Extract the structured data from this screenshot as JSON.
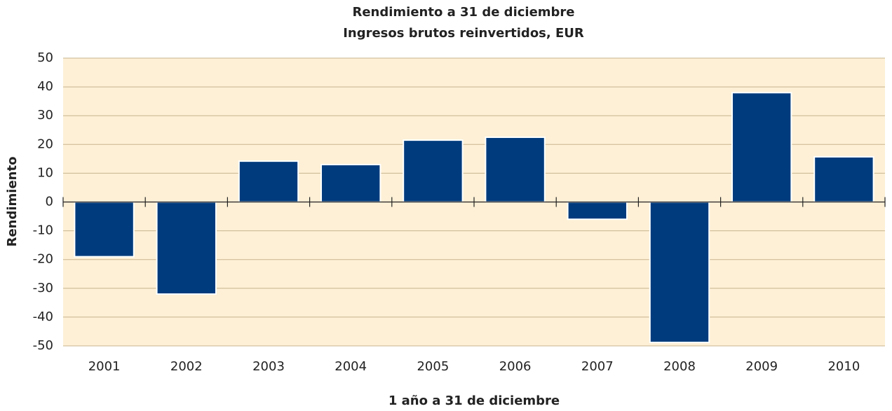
{
  "chart_data": {
    "type": "bar",
    "title": "Rendimiento a 31 de diciembre",
    "subtitle": "Ingresos brutos reinvertidos, EUR",
    "y_label": "Rendimiento",
    "x_label": "1 año a 31 de diciembre",
    "categories": [
      "2001",
      "2002",
      "2003",
      "2004",
      "2005",
      "2006",
      "2007",
      "2008",
      "2009",
      "2010"
    ],
    "values": [
      -19,
      -32,
      14.2,
      13,
      21.5,
      22.5,
      -6,
      -48.8,
      38,
      15.7
    ],
    "color": "#003b7d",
    "ylim": [
      -50,
      50
    ],
    "yticks": [
      -50,
      -40,
      -30,
      -20,
      -10,
      0,
      10,
      20,
      30,
      40,
      50
    ],
    "grid": true
  }
}
